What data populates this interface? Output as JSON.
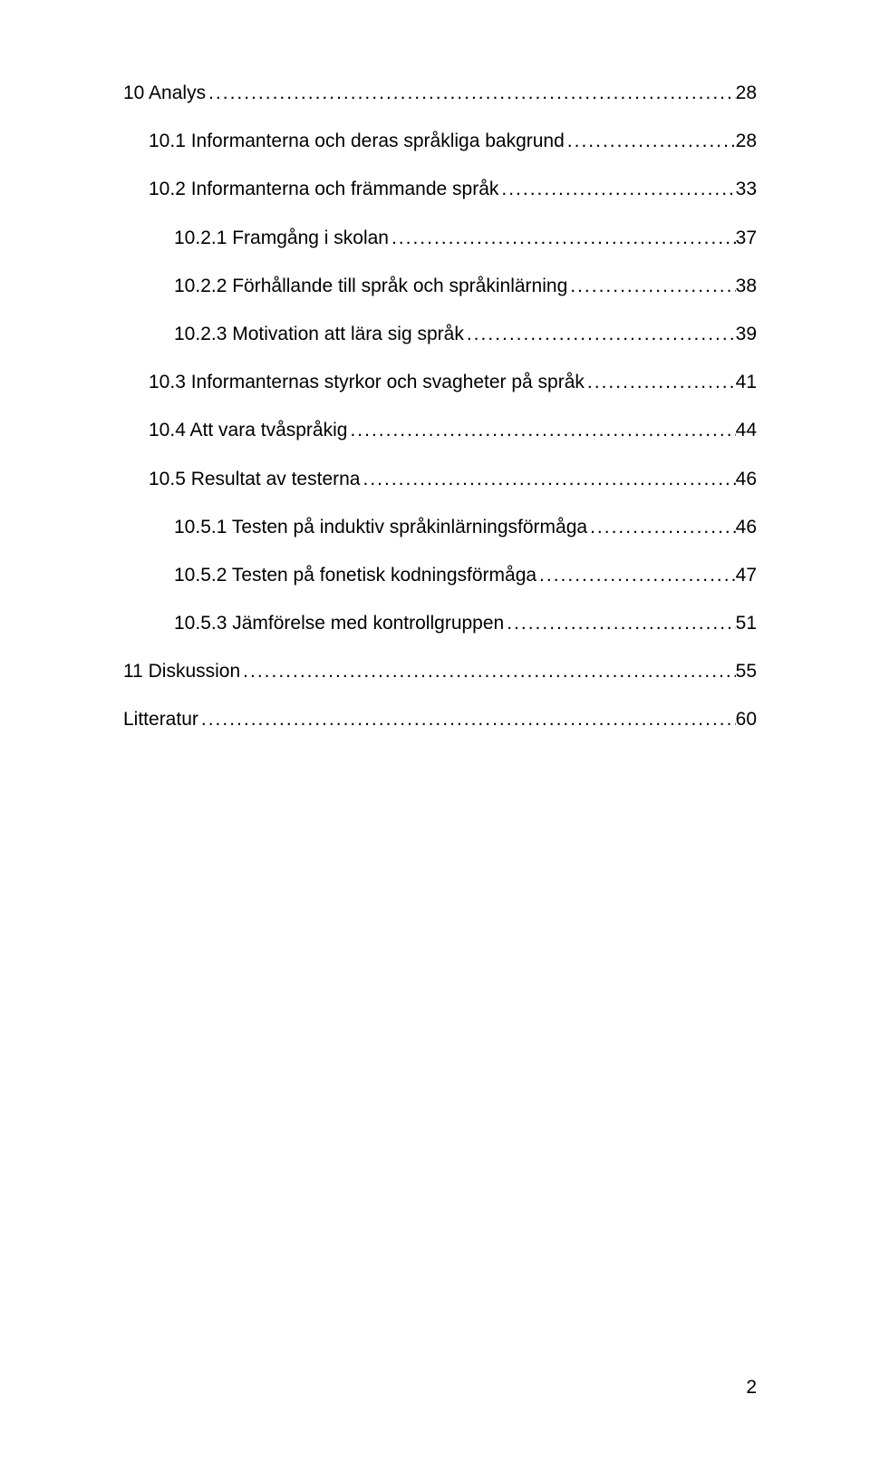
{
  "toc": [
    {
      "indent": 0,
      "label": "10 Analys",
      "page": "28"
    },
    {
      "indent": 1,
      "label": "10.1 Informanterna och deras språkliga bakgrund",
      "page": "28"
    },
    {
      "indent": 1,
      "label": "10.2 Informanterna och främmande språk",
      "page": "33"
    },
    {
      "indent": 2,
      "label": "10.2.1 Framgång i skolan",
      "page": "37"
    },
    {
      "indent": 2,
      "label": "10.2.2 Förhållande till språk och språkinlärning",
      "page": "38"
    },
    {
      "indent": 2,
      "label": "10.2.3 Motivation att lära sig språk",
      "page": "39"
    },
    {
      "indent": 1,
      "label": "10.3 Informanternas styrkor och svagheter på språk",
      "page": "41"
    },
    {
      "indent": 1,
      "label": "10.4 Att vara tvåspråkig",
      "page": "44"
    },
    {
      "indent": 1,
      "label": "10.5 Resultat av testerna",
      "page": "46"
    },
    {
      "indent": 2,
      "label": "10.5.1 Testen på induktiv språkinlärningsförmåga",
      "page": "46"
    },
    {
      "indent": 2,
      "label": "10.5.2 Testen på fonetisk kodningsförmåga",
      "page": "47"
    },
    {
      "indent": 2,
      "label": "10.5.3 Jämförelse med kontrollgruppen",
      "page": "51"
    },
    {
      "indent": 0,
      "label": "11 Diskussion",
      "page": "55"
    },
    {
      "indent": 0,
      "label": "Litteratur",
      "page": "60"
    }
  ],
  "footer_page_number": "2",
  "style": {
    "font_family": "Arial",
    "font_size_pt": 16,
    "text_color": "#000000",
    "background_color": "#ffffff"
  }
}
